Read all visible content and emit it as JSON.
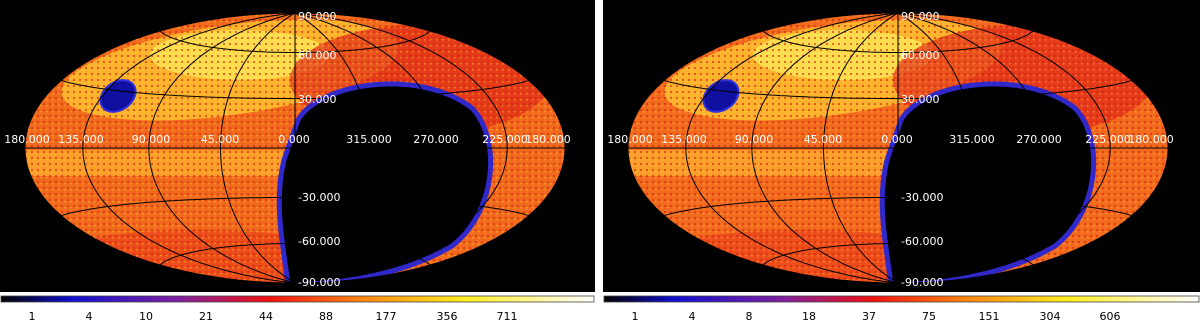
{
  "panels": [
    {
      "lon_labels": [
        "180.000",
        "135.000",
        "90.000",
        "45.000",
        "0.000",
        "315.000",
        "270.000",
        "225.000",
        "180.000"
      ],
      "lat_labels": [
        "90.000",
        "60.000",
        "30.000",
        "-30.000",
        "-60.000",
        "-90.000"
      ],
      "colorbar_ticks": [
        "1",
        "4",
        "10",
        "21",
        "44",
        "88",
        "177",
        "356",
        "711"
      ]
    },
    {
      "lon_labels": [
        "180.000",
        "135.000",
        "90.000",
        "45.000",
        "0.000",
        "315.000",
        "270.000",
        "225.000",
        "180.000"
      ],
      "lat_labels": [
        "90.000",
        "60.000",
        "30.000",
        "-30.000",
        "-60.000",
        "-90.000"
      ],
      "colorbar_ticks": [
        "1",
        "4",
        "8",
        "18",
        "37",
        "75",
        "151",
        "304",
        "606"
      ]
    }
  ]
}
